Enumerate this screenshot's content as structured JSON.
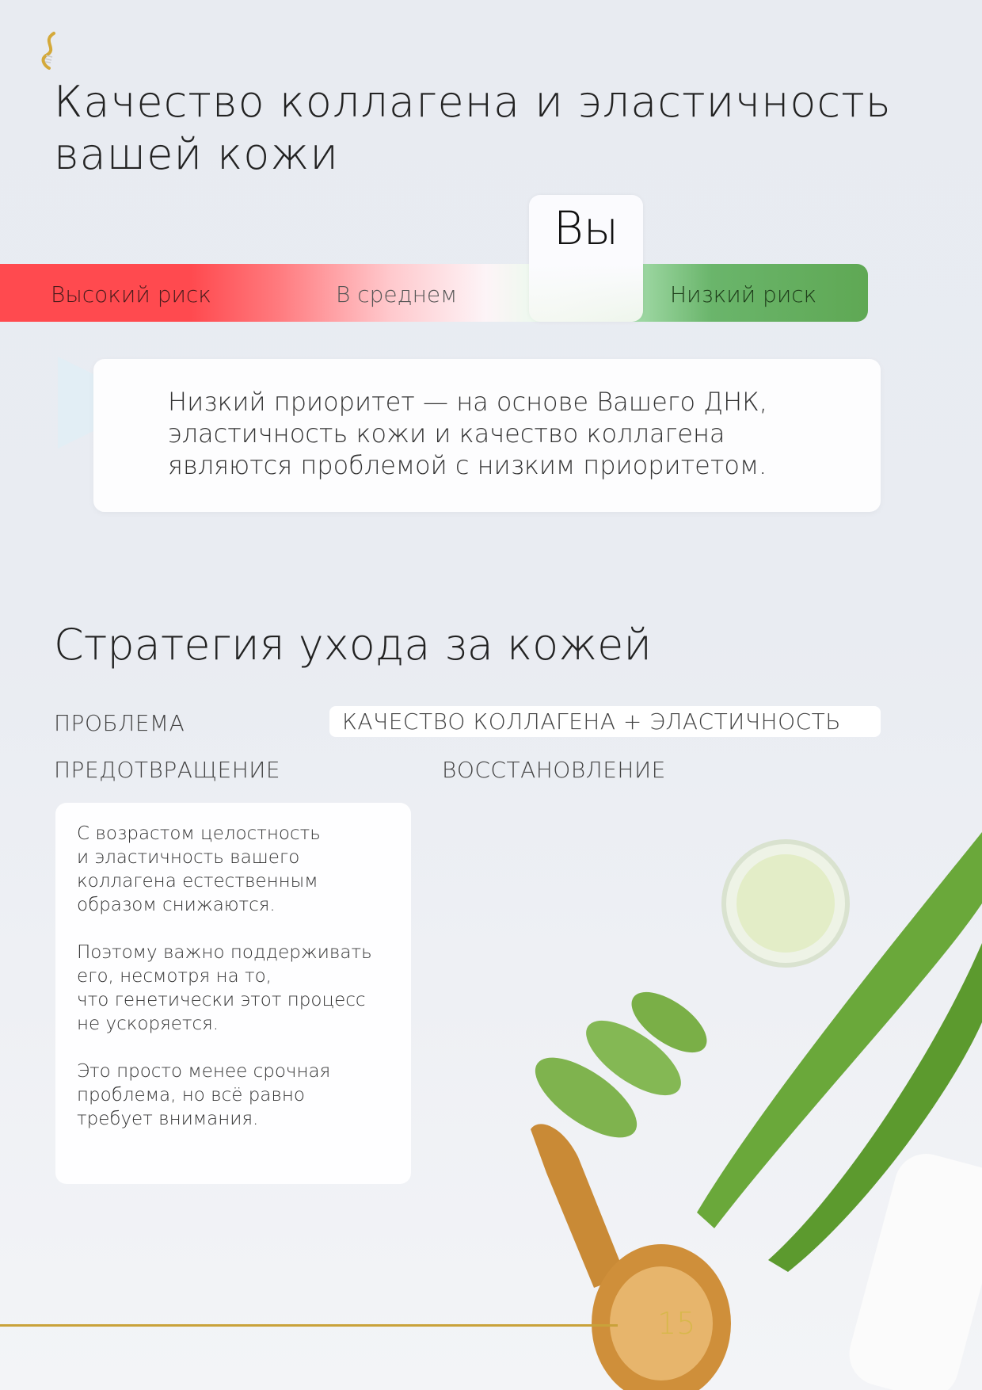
{
  "header": {
    "logo_icon": "dna-helix-icon",
    "title_line1": "Качество коллагена и эластичность",
    "title_line2": "вашей кожи"
  },
  "risk_scale": {
    "labels": [
      "Высокий риск",
      "В среднем",
      "Низкий риск"
    ],
    "marker_label": "Вы",
    "marker_position": "low-risk",
    "colors": {
      "high": "#ff4a4f",
      "average": "#fdf4f7",
      "low": "#5fa854"
    }
  },
  "callout": {
    "text": "Низкий приоритет — на основе Вашего ДНК, эластичность кожи и качество коллагена являются проблемой с низким приоритетом."
  },
  "strategy": {
    "title": "Стратегия ухода за кожей",
    "problem_label": "ПРОБЛЕМА",
    "problem_value": "КАЧЕСТВО КОЛЛАГЕНА + ЭЛАСТИЧНОСТЬ",
    "prevention_label": "ПРЕДОТВРАЩЕНИЕ",
    "recovery_label": "ВОССТАНОВЛЕНИЕ",
    "prevention_paragraphs": [
      "С возрастом целостность\nи эластичность вашего\nколлагена естественным\nобразом снижаются.",
      "Поэтому важно поддерживать\nего, несмотря на то,\nчто генетически этот процесс\nне ускоряется.",
      "Это просто менее срочная\nпроблема, но всё равно\nтребует внимания."
    ]
  },
  "footer": {
    "page_number": "15",
    "accent": "#c9a23a"
  }
}
